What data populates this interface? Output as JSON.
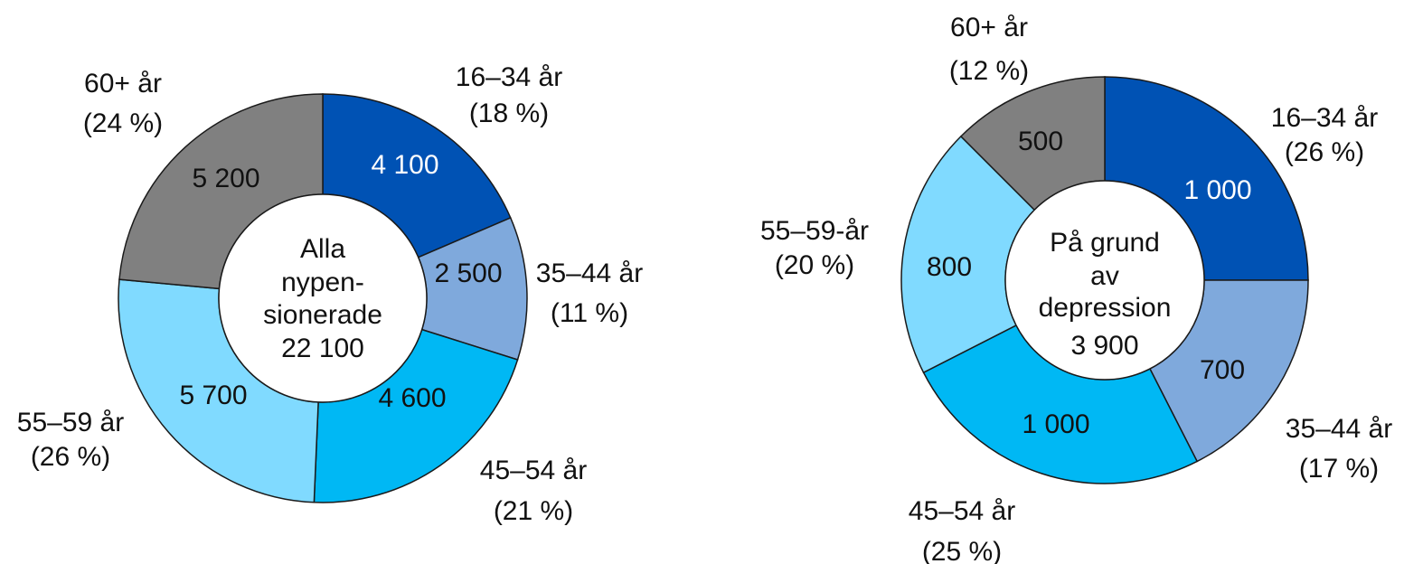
{
  "chart_data": [
    {
      "type": "donut",
      "center_text": [
        "Alla",
        "nypen-",
        "sionerade",
        "22 100"
      ],
      "total": 22100,
      "categories": [
        "16–34 år",
        "35–44 år",
        "45–54 år",
        "55–59 år",
        "60+ år"
      ],
      "values": [
        4100,
        2500,
        4600,
        5700,
        5200
      ],
      "value_labels": [
        "4 100",
        "2 500",
        "4 600",
        "5 700",
        "5 200"
      ],
      "percent_labels": [
        "(18 %)",
        "(11 %)",
        "(21 %)",
        "(26 %)",
        "(24 %)"
      ],
      "colors": [
        "#0052b4",
        "#7fa9dc",
        "#00b8f4",
        "#80daff",
        "#808080"
      ],
      "value_text_colors": [
        "#ffffff",
        "#111111",
        "#111111",
        "#111111",
        "#111111"
      ]
    },
    {
      "type": "donut",
      "center_text": [
        "På grund",
        "av",
        "depression",
        "3 900"
      ],
      "total": 3900,
      "categories": [
        "16–34 år",
        "35–44 år",
        "45–54 år",
        "55–59-år",
        "60+ år"
      ],
      "values": [
        1000,
        700,
        1000,
        800,
        500
      ],
      "value_labels": [
        "1 000",
        "700",
        "1 000",
        "800",
        "500"
      ],
      "percent_labels": [
        "(26 %)",
        "(17 %)",
        "(25 %)",
        "(20 %)",
        "(12 %)"
      ],
      "colors": [
        "#0052b4",
        "#7fa9dc",
        "#00b8f4",
        "#80daff",
        "#808080"
      ],
      "value_text_colors": [
        "#ffffff",
        "#111111",
        "#111111",
        "#111111",
        "#111111"
      ]
    }
  ]
}
